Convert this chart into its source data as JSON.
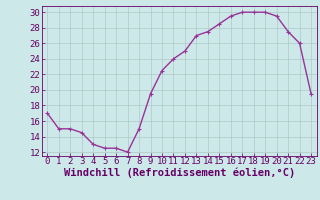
{
  "x": [
    0,
    1,
    2,
    3,
    4,
    5,
    6,
    7,
    8,
    9,
    10,
    11,
    12,
    13,
    14,
    15,
    16,
    17,
    18,
    19,
    20,
    21,
    22,
    23
  ],
  "y": [
    17,
    15,
    15,
    14.5,
    13,
    12.5,
    12.5,
    12,
    15,
    19.5,
    22.5,
    24,
    25,
    27,
    27.5,
    28.5,
    29.5,
    30,
    30,
    30,
    29.5,
    27.5,
    26,
    19.5
  ],
  "line_color": "#993399",
  "marker": "+",
  "background_color": "#cce8e8",
  "grid_color": "#b0c8c8",
  "xlabel": "Windchill (Refroidissement éolien,°C)",
  "xlim": [
    -0.5,
    23.5
  ],
  "ylim": [
    11.5,
    30.8
  ],
  "yticks": [
    12,
    14,
    16,
    18,
    20,
    22,
    24,
    26,
    28,
    30
  ],
  "xticks": [
    0,
    1,
    2,
    3,
    4,
    5,
    6,
    7,
    8,
    9,
    10,
    11,
    12,
    13,
    14,
    15,
    16,
    17,
    18,
    19,
    20,
    21,
    22,
    23
  ],
  "tick_color": "#660066",
  "label_color": "#660066",
  "font_size": 6.5,
  "xlabel_font_size": 7.5,
  "line_width": 1.0,
  "marker_size": 3.5
}
